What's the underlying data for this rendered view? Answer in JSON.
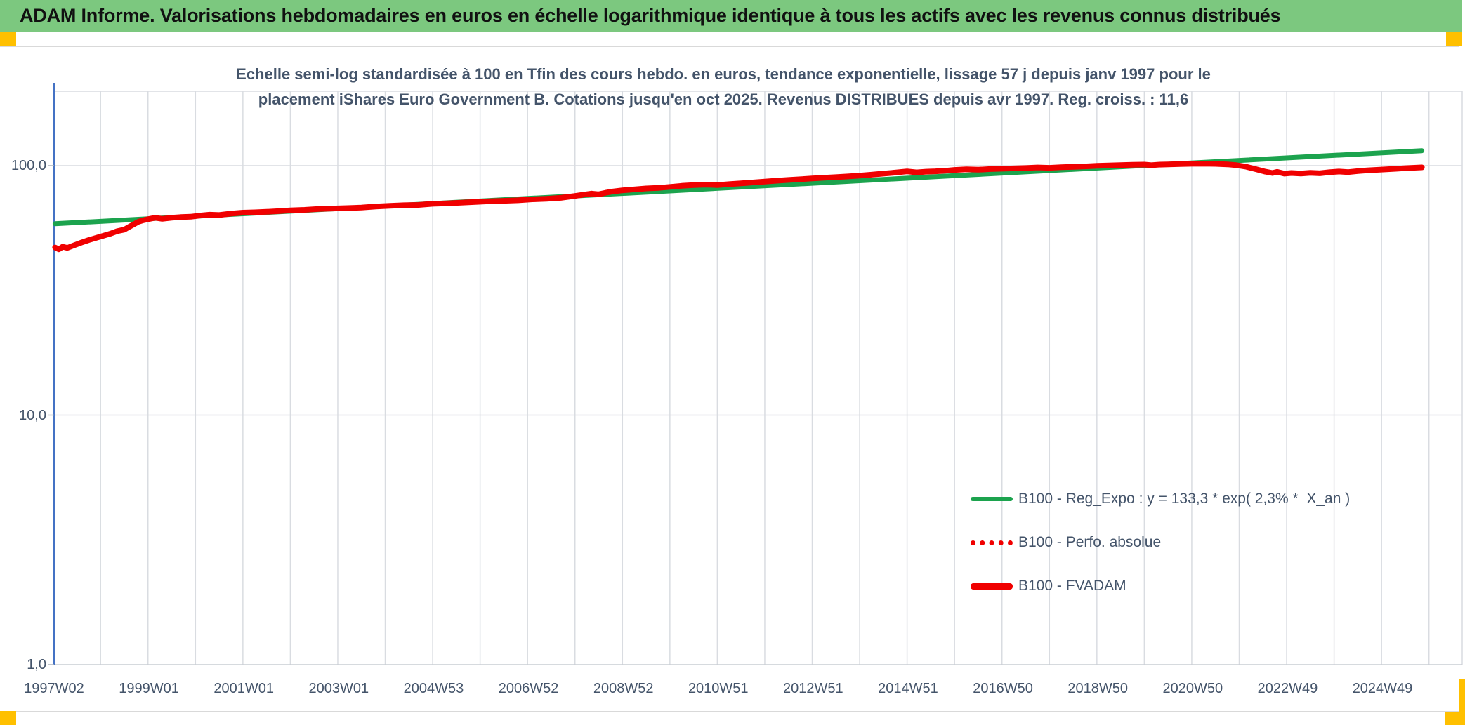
{
  "banner": {
    "title": "ADAM Informe. Valorisations hebdomadaires en euros en échelle logarithmique identique à tous les actifs avec les revenus connus distribués",
    "bg_color": "#7cc87f",
    "accent_color": "#ffc000"
  },
  "chart": {
    "title_line1": "Echelle semi-log standardisée à 100 en Tfin des cours hebdo. en euros, tendance exponentielle, lissage 57 j depuis janv 1997 pour le",
    "title_line2": "placement iShares Euro Government B. Cotations jusqu'en oct 2025. Revenus DISTRIBUES depuis avr 1997. Reg. croiss. : 11,6",
    "legend": [
      {
        "label": "B100 - Reg_Expo : y = 133,3 * exp( 2,3% *  X_an )",
        "style": "solid",
        "color": "#1ca34e"
      },
      {
        "label": "B100 - Perfo. absolue",
        "style": "dotted",
        "color": "#f00000"
      },
      {
        "label": "B100 - FVADAM",
        "style": "solid-thick",
        "color": "#f00000"
      }
    ]
  },
  "chart_data": {
    "type": "line",
    "title": "Echelle semi-log standardisée à 100 en Tfin des cours hebdo. en euros, tendance exponentielle, lissage 57 j depuis janv 1997 pour le placement iShares Euro Government B. Cotations jusqu'en oct 2025. Revenus DISTRIBUES depuis avr 1997. Reg. croiss. : 11,6",
    "xlabel": "",
    "ylabel": "",
    "y_scale": "log10",
    "y_range": [
      1,
      200
    ],
    "x_range": [
      1997.02,
      2026.7
    ],
    "grid": "both",
    "legend_position": "inside-bottom-right",
    "x_tick_labels": [
      "1997W02",
      "1999W01",
      "2001W01",
      "2003W01",
      "2004W53",
      "2006W52",
      "2008W52",
      "2010W51",
      "2012W51",
      "2014W51",
      "2016W50",
      "2018W50",
      "2020W50",
      "2022W49",
      "2024W49"
    ],
    "x_tick_step_years": 2,
    "y_tick_labels": [
      "100,0",
      "10,0",
      "1,0"
    ],
    "y_tick_values": [
      100,
      10,
      1
    ],
    "axis_color": "#4472c4",
    "grid_color": "#d9dce1",
    "series": [
      {
        "name": "B100 - Reg_Expo",
        "color": "#1ca34e",
        "style": "solid",
        "width": 7,
        "points": [
          [
            1997.04,
            58.5
          ],
          [
            2025.85,
            114.8
          ]
        ]
      },
      {
        "name": "B100 - Perfo. absolue",
        "color": "#f00000",
        "style": "dotted",
        "width": 5,
        "points_from": "B100 - FVADAM",
        "note": "overlaps the FVADAM curve"
      },
      {
        "name": "B100 - FVADAM",
        "color": "#f00000",
        "style": "solid",
        "width": 8,
        "points": [
          [
            1997.04,
            47.0
          ],
          [
            1997.12,
            46.2
          ],
          [
            1997.2,
            47.3
          ],
          [
            1997.3,
            46.8
          ],
          [
            1997.45,
            48.0
          ],
          [
            1997.6,
            49.2
          ],
          [
            1997.75,
            50.3
          ],
          [
            1997.9,
            51.3
          ],
          [
            1998.05,
            52.3
          ],
          [
            1998.2,
            53.3
          ],
          [
            1998.35,
            54.6
          ],
          [
            1998.5,
            55.4
          ],
          [
            1998.6,
            56.8
          ],
          [
            1998.7,
            58.2
          ],
          [
            1998.8,
            59.6
          ],
          [
            1998.9,
            60.4
          ],
          [
            1999.0,
            61.0
          ],
          [
            1999.15,
            61.8
          ],
          [
            1999.3,
            61.2
          ],
          [
            1999.5,
            61.8
          ],
          [
            1999.7,
            62.2
          ],
          [
            1999.9,
            62.4
          ],
          [
            2000.1,
            63.1
          ],
          [
            2000.3,
            63.6
          ],
          [
            2000.5,
            63.4
          ],
          [
            2000.75,
            64.2
          ],
          [
            2001.0,
            64.8
          ],
          [
            2001.25,
            65.0
          ],
          [
            2001.5,
            65.3
          ],
          [
            2001.75,
            65.7
          ],
          [
            2002.0,
            66.2
          ],
          [
            2002.3,
            66.5
          ],
          [
            2002.6,
            67.0
          ],
          [
            2002.9,
            67.3
          ],
          [
            2003.2,
            67.6
          ],
          [
            2003.5,
            67.9
          ],
          [
            2003.8,
            68.6
          ],
          [
            2004.1,
            69.0
          ],
          [
            2004.4,
            69.4
          ],
          [
            2004.7,
            69.6
          ],
          [
            2005.0,
            70.3
          ],
          [
            2005.3,
            70.6
          ],
          [
            2005.6,
            71.1
          ],
          [
            2005.9,
            71.5
          ],
          [
            2006.2,
            72.0
          ],
          [
            2006.5,
            72.3
          ],
          [
            2006.8,
            72.6
          ],
          [
            2007.1,
            73.3
          ],
          [
            2007.4,
            73.6
          ],
          [
            2007.7,
            74.3
          ],
          [
            2008.0,
            75.6
          ],
          [
            2008.2,
            76.6
          ],
          [
            2008.35,
            77.3
          ],
          [
            2008.5,
            76.8
          ],
          [
            2008.65,
            77.9
          ],
          [
            2008.8,
            78.8
          ],
          [
            2009.0,
            79.6
          ],
          [
            2009.25,
            80.3
          ],
          [
            2009.5,
            81.0
          ],
          [
            2009.75,
            81.4
          ],
          [
            2010.0,
            82.2
          ],
          [
            2010.25,
            83.0
          ],
          [
            2010.5,
            83.6
          ],
          [
            2010.75,
            83.9
          ],
          [
            2011.0,
            83.6
          ],
          [
            2011.25,
            84.3
          ],
          [
            2011.5,
            84.9
          ],
          [
            2011.75,
            85.6
          ],
          [
            2012.0,
            86.3
          ],
          [
            2012.25,
            87.0
          ],
          [
            2012.5,
            87.6
          ],
          [
            2012.75,
            88.2
          ],
          [
            2013.0,
            88.9
          ],
          [
            2013.25,
            89.4
          ],
          [
            2013.5,
            89.9
          ],
          [
            2013.75,
            90.5
          ],
          [
            2014.0,
            91.2
          ],
          [
            2014.25,
            92.0
          ],
          [
            2014.5,
            92.9
          ],
          [
            2014.75,
            93.8
          ],
          [
            2015.0,
            94.8
          ],
          [
            2015.2,
            94.0
          ],
          [
            2015.4,
            94.6
          ],
          [
            2015.6,
            94.9
          ],
          [
            2015.8,
            95.4
          ],
          [
            2016.0,
            96.1
          ],
          [
            2016.25,
            96.6
          ],
          [
            2016.5,
            96.3
          ],
          [
            2016.75,
            96.9
          ],
          [
            2017.0,
            97.2
          ],
          [
            2017.25,
            97.5
          ],
          [
            2017.5,
            97.8
          ],
          [
            2017.75,
            98.3
          ],
          [
            2018.0,
            98.0
          ],
          [
            2018.25,
            98.5
          ],
          [
            2018.5,
            98.9
          ],
          [
            2018.75,
            99.3
          ],
          [
            2019.0,
            99.8
          ],
          [
            2019.25,
            100.2
          ],
          [
            2019.5,
            100.5
          ],
          [
            2019.75,
            100.8
          ],
          [
            2020.0,
            101.0
          ],
          [
            2020.15,
            100.4
          ],
          [
            2020.3,
            100.9
          ],
          [
            2020.5,
            101.2
          ],
          [
            2020.75,
            101.5
          ],
          [
            2021.0,
            101.7
          ],
          [
            2021.25,
            101.8
          ],
          [
            2021.5,
            101.6
          ],
          [
            2021.75,
            101.2
          ],
          [
            2021.95,
            100.4
          ],
          [
            2022.15,
            99.0
          ],
          [
            2022.35,
            96.8
          ],
          [
            2022.55,
            94.6
          ],
          [
            2022.7,
            93.4
          ],
          [
            2022.8,
            94.4
          ],
          [
            2022.95,
            92.9
          ],
          [
            2023.1,
            93.4
          ],
          [
            2023.3,
            93.0
          ],
          [
            2023.5,
            93.6
          ],
          [
            2023.7,
            93.2
          ],
          [
            2023.9,
            94.1
          ],
          [
            2024.1,
            94.7
          ],
          [
            2024.3,
            94.2
          ],
          [
            2024.5,
            95.1
          ],
          [
            2024.7,
            95.7
          ],
          [
            2024.9,
            96.2
          ],
          [
            2025.1,
            96.7
          ],
          [
            2025.3,
            97.1
          ],
          [
            2025.5,
            97.7
          ],
          [
            2025.85,
            98.4
          ]
        ]
      }
    ]
  }
}
